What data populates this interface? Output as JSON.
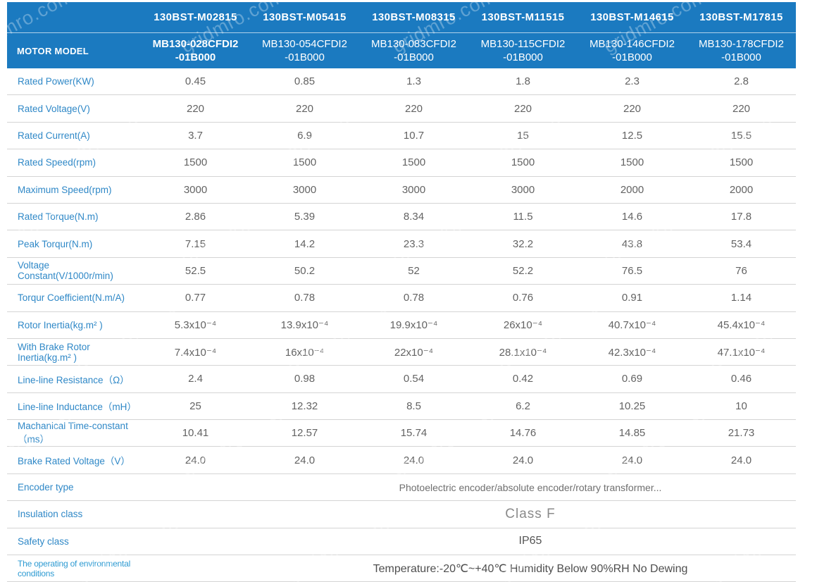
{
  "watermark": {
    "text": "gridmro.com"
  },
  "table": {
    "corner_label": "MOTOR MODEL",
    "columns": [
      {
        "model": "130BST-M02815",
        "sub1": "MB130-028CFDI2",
        "sub2": "-01B000",
        "bold": true
      },
      {
        "model": "130BST-M05415",
        "sub1": "MB130-054CFDI2",
        "sub2": "-01B000",
        "bold": false
      },
      {
        "model": "130BST-M08315",
        "sub1": "MB130-083CFDI2",
        "sub2": "-01B000",
        "bold": false
      },
      {
        "model": "130BST-M11515",
        "sub1": "MB130-115CFDI2",
        "sub2": "-01B000",
        "bold": false
      },
      {
        "model": "130BST-M14615",
        "sub1": "MB130-146CFDI2",
        "sub2": "-01B000",
        "bold": false
      },
      {
        "model": "130BST-M17815",
        "sub1": "MB130-178CFDI2",
        "sub2": "-01B000",
        "bold": false
      }
    ],
    "rows": [
      {
        "label": "Rated Power(KW)",
        "values": [
          "0.45",
          "0.85",
          "1.3",
          "1.8",
          "2.3",
          "2.8"
        ]
      },
      {
        "label": "Rated Voltage(V)",
        "values": [
          "220",
          "220",
          "220",
          "220",
          "220",
          "220"
        ]
      },
      {
        "label": "Rated Current(A)",
        "values": [
          "3.7",
          "6.9",
          "10.7",
          "15",
          "12.5",
          "15.5"
        ]
      },
      {
        "label": "Rated Speed(rpm)",
        "values": [
          "1500",
          "1500",
          "1500",
          "1500",
          "1500",
          "1500"
        ]
      },
      {
        "label": "Maximum Speed(rpm)",
        "values": [
          "3000",
          "3000",
          "3000",
          "3000",
          "2000",
          "2000"
        ]
      },
      {
        "label": "Rated Torque(N.m)",
        "values": [
          "2.86",
          "5.39",
          "8.34",
          "11.5",
          "14.6",
          "17.8"
        ]
      },
      {
        "label": "Peak Torqur(N.m)",
        "values": [
          "7.15",
          "14.2",
          "23.3",
          "32.2",
          "43.8",
          "53.4"
        ]
      },
      {
        "label": "Voltage Constant(V/1000r/min)",
        "values": [
          "52.5",
          "50.2",
          "52",
          "52.2",
          "76.5",
          "76"
        ]
      },
      {
        "label": "Torqur Coefficient(N.m/A)",
        "values": [
          "0.77",
          "0.78",
          "0.78",
          "0.76",
          "0.91",
          "1.14"
        ]
      },
      {
        "label": "Rotor Inertia(kg.m² )",
        "values": [
          "5.3x10⁻⁴",
          "13.9x10⁻⁴",
          "19.9x10⁻⁴",
          "26x10⁻⁴",
          "40.7x10⁻⁴",
          "45.4x10⁻⁴"
        ]
      },
      {
        "label": "With Brake Rotor Inertia(kg.m² )",
        "values": [
          "7.4x10⁻⁴",
          "16x10⁻⁴",
          "22x10⁻⁴",
          "28.1x10⁻⁴",
          "42.3x10⁻⁴",
          "47.1x10⁻⁴"
        ]
      },
      {
        "label": "Line-line Resistance（Ω）",
        "values": [
          "2.4",
          "0.98",
          "0.54",
          "0.42",
          "0.69",
          "0.46"
        ]
      },
      {
        "label": "Line-line Inductance（mH）",
        "values": [
          "25",
          "12.32",
          "8.5",
          "6.2",
          "10.25",
          "10"
        ]
      },
      {
        "label": "Machanical Time-constant（ms）",
        "values": [
          "10.41",
          "12.57",
          "15.74",
          "14.76",
          "14.85",
          "21.73"
        ]
      },
      {
        "label": "Brake Rated Voltage（V）",
        "values": [
          "24.0",
          "24.0",
          "24.0",
          "24.0",
          "24.0",
          "24.0"
        ]
      },
      {
        "label": "Encoder type",
        "span_value": "Photoelectric encoder/absolute encoder/rotary transformer...",
        "span_class": "span-regular"
      },
      {
        "label": "Insulation class",
        "span_value": "Class F",
        "span_class": "span-large"
      },
      {
        "label": "Safety class",
        "span_value": "IP65",
        "span_class": "span-medium"
      },
      {
        "label": "The operating of environmental conditions",
        "label_class": "label-small",
        "span_value": "Temperature:-20℃~+40℃  Humidity Below 90%RH No Dewing",
        "span_class": "span-temp"
      }
    ]
  }
}
